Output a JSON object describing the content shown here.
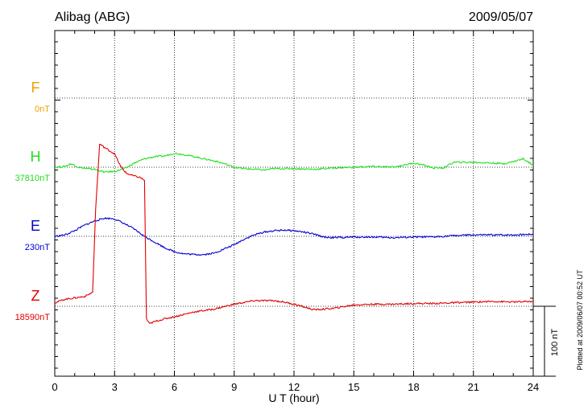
{
  "chart_data": {
    "type": "line",
    "title": "Alibag (ABG)",
    "date": "2009/05/07",
    "xlabel": "U T (hour)",
    "xlim": [
      0,
      24
    ],
    "x_ticks": [
      "0",
      "3",
      "6",
      "9",
      "12",
      "15",
      "18",
      "21",
      "24"
    ],
    "scale_bar_label": "100 nT",
    "scale_bar_nT": 100,
    "plotted_note": "Plotted at 2009/06/07 00:52 UT",
    "grid": true,
    "series": [
      {
        "name": "F",
        "baseline_label": "0nT",
        "color": "#f0a000",
        "values": []
      },
      {
        "name": "H",
        "baseline_label": "37810nT",
        "color": "#20e020",
        "x": [
          0,
          0.5,
          0.8,
          1.2,
          1.6,
          2.0,
          2.5,
          3.0,
          3.5,
          4.0,
          4.5,
          5.0,
          5.5,
          6.0,
          6.5,
          7.0,
          7.5,
          8.0,
          8.5,
          9.0,
          9.5,
          10.0,
          10.5,
          11.0,
          12.0,
          13.0,
          14.0,
          15.0,
          16.0,
          17.0,
          18.0,
          18.5,
          19.0,
          19.5,
          20.0,
          21.0,
          22.0,
          22.5,
          23.0,
          23.5,
          24.0
        ],
        "values": [
          0,
          1,
          5,
          0,
          -2,
          -3,
          -7,
          -6,
          -2,
          6,
          12,
          15,
          16,
          20,
          18,
          15,
          12,
          9,
          5,
          0,
          -2,
          -3,
          -4,
          -2,
          -2,
          -3,
          -1,
          0,
          1,
          0,
          6,
          3,
          -1,
          -1,
          7,
          7,
          6,
          5,
          8,
          12,
          3
        ]
      },
      {
        "name": "E",
        "baseline_label": "230nT",
        "color": "#0000d0",
        "x": [
          0,
          0.5,
          1.0,
          1.5,
          2.0,
          2.5,
          3.0,
          3.5,
          4.0,
          4.5,
          5.0,
          5.5,
          6.0,
          6.5,
          7.0,
          7.5,
          8.0,
          8.5,
          9.0,
          9.5,
          10.0,
          10.5,
          11.0,
          11.5,
          12.0,
          12.5,
          13.0,
          13.5,
          14.0,
          15.0,
          16.0,
          17.0,
          18.0,
          19.0,
          20.0,
          21.0,
          22.0,
          23.0,
          24.0
        ],
        "values": [
          0,
          2,
          8,
          16,
          22,
          26,
          25,
          18,
          10,
          0,
          -8,
          -16,
          -22,
          -25,
          -26,
          -26,
          -24,
          -18,
          -12,
          -4,
          2,
          6,
          8,
          9,
          8,
          6,
          3,
          -1,
          -2,
          -1,
          -1,
          -2,
          -1,
          -1,
          1,
          2,
          2,
          2,
          3
        ]
      },
      {
        "name": "Z",
        "baseline_label": "18590nT",
        "color": "#e00000",
        "x": [
          0,
          0.5,
          1.0,
          1.5,
          1.9,
          2.05,
          2.25,
          2.6,
          3.0,
          3.3,
          3.6,
          4.0,
          4.3,
          4.5,
          4.6,
          4.75,
          5.0,
          5.5,
          6.0,
          7.0,
          8.0,
          9.0,
          10.0,
          11.0,
          11.5,
          12.0,
          12.5,
          13.0,
          14.0,
          15.0,
          16.0,
          17.0,
          18.0,
          19.0,
          20.0,
          21.0,
          22.0,
          23.0,
          24.0
        ],
        "values": [
          5,
          10,
          12,
          14,
          20,
          138,
          232,
          225,
          218,
          200,
          190,
          186,
          184,
          180,
          -18,
          -25,
          -22,
          -18,
          -15,
          -8,
          -4,
          3,
          8,
          8,
          6,
          3,
          -1,
          -5,
          -3,
          2,
          3,
          3,
          4,
          4,
          5,
          6,
          7,
          6,
          7
        ]
      }
    ]
  }
}
